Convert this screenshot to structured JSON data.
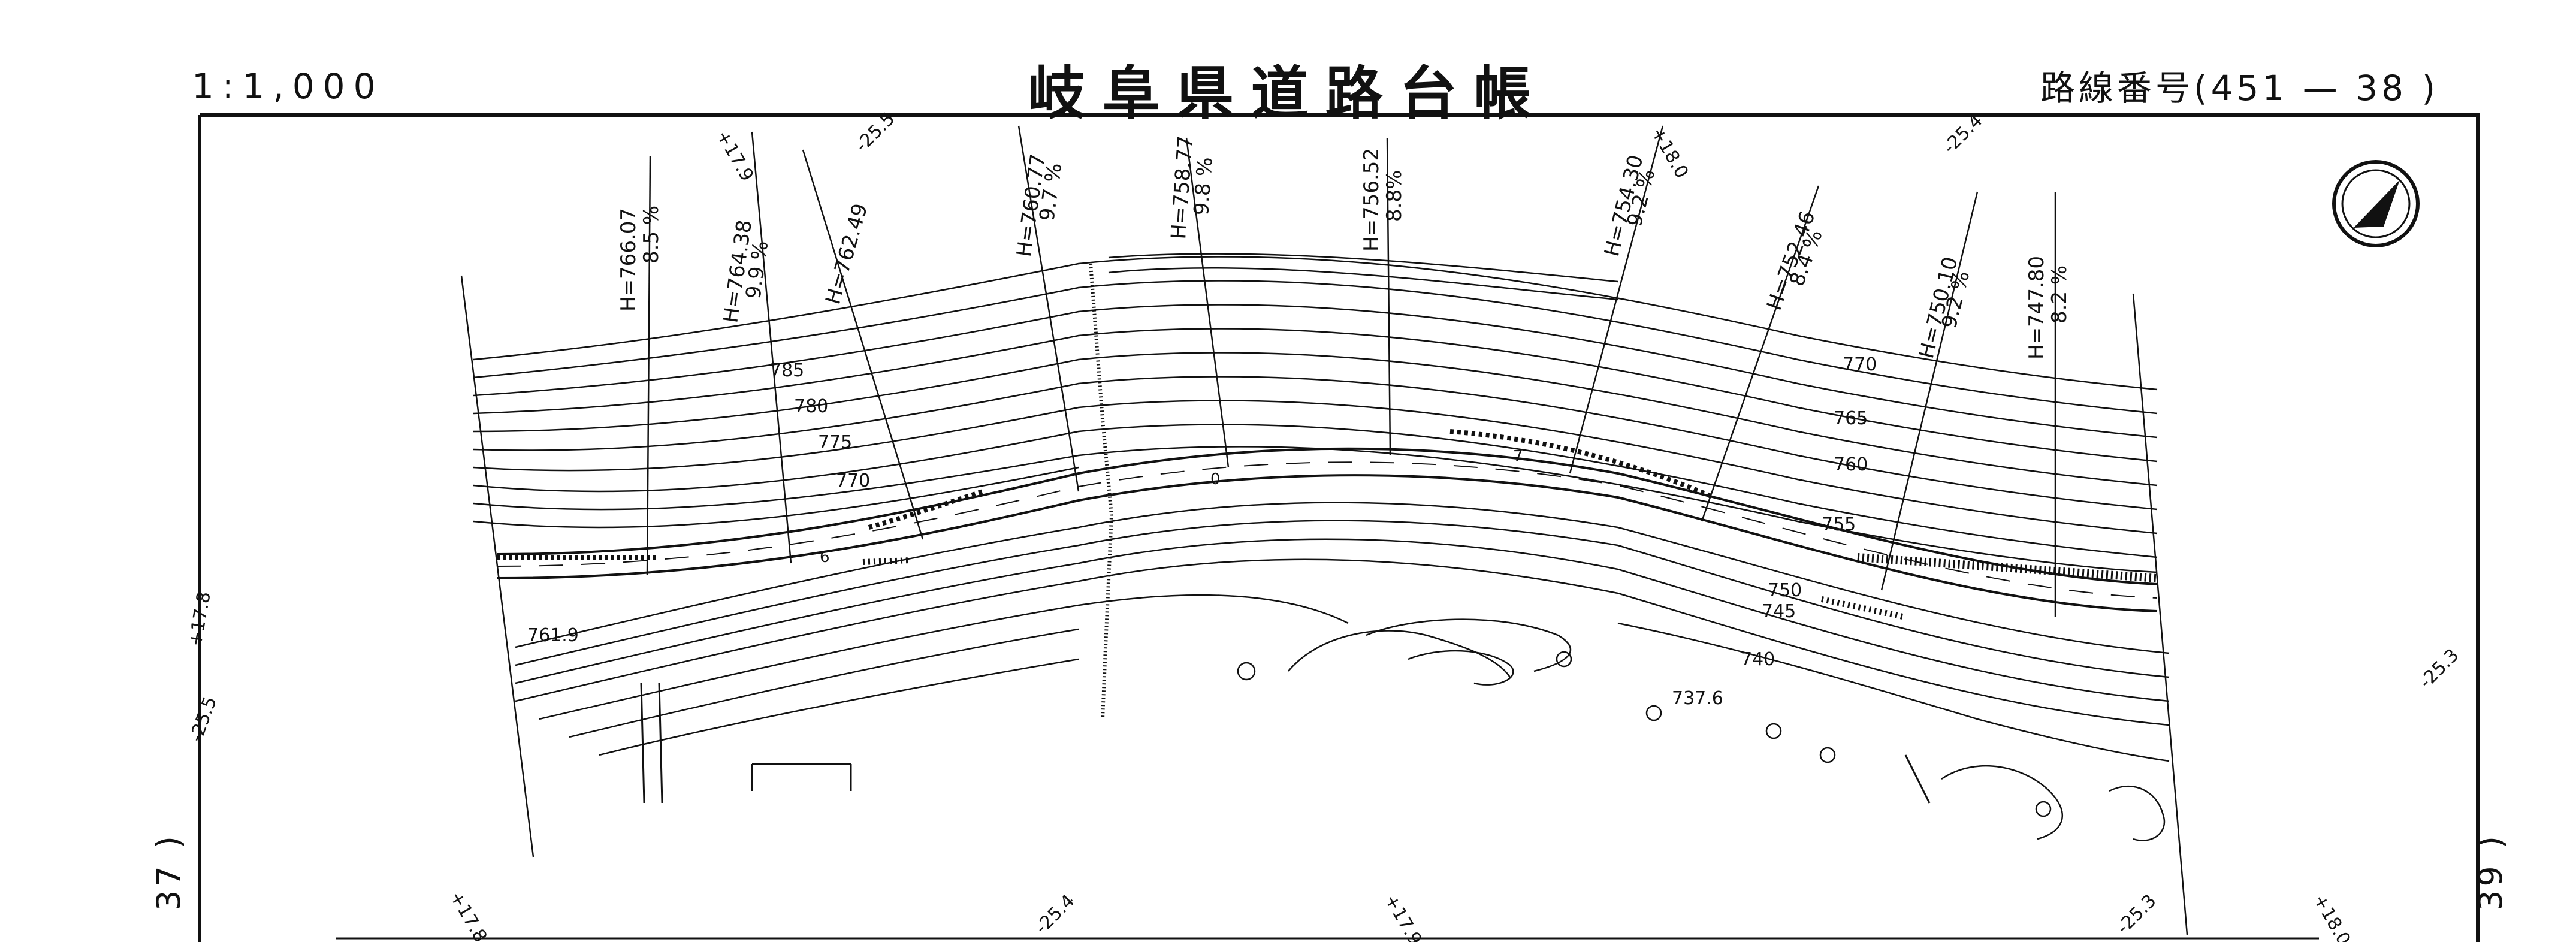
{
  "header": {
    "scale": "1:1,000",
    "title": "岐阜県道路台帳",
    "route_label": "路線番号(451 — 38 )"
  },
  "adjacent_sheets": {
    "left": "37 )",
    "right": "39 )"
  },
  "edge_ticks": [
    "+17.9",
    "-25.5",
    "+18.0",
    "-25.4",
    "+17.8",
    "-25.5",
    "-25.3",
    "+17.8",
    "-25.4",
    "+17.9",
    "-25.3",
    "+18.0"
  ],
  "sections": [
    {
      "h": "H=766.07",
      "grade": "8.5 %"
    },
    {
      "h": "H=764.38",
      "grade": "9.9 %"
    },
    {
      "h": "H=762.49",
      "grade": ""
    },
    {
      "h": "H=760.77",
      "grade": "9.7 %"
    },
    {
      "h": "H=758.77",
      "grade": "9.8 %"
    },
    {
      "h": "H=756.52",
      "grade": "8.8%"
    },
    {
      "h": "H=754.30",
      "grade": "9.2 %"
    },
    {
      "h": "H=752.46",
      "grade": "8.4 %"
    },
    {
      "h": "H=750.10",
      "grade": "9.2 %"
    },
    {
      "h": "H=747.80",
      "grade": "8.2 %"
    }
  ],
  "contour_labels": [
    "785",
    "780",
    "775",
    "770",
    "770",
    "765",
    "760",
    "755",
    "750",
    "745",
    "740"
  ],
  "spot_heights": [
    "761.9",
    "737.6"
  ],
  "station_marks": [
    "6",
    "0",
    "7"
  ],
  "north_arrow": "compass-north-arrow"
}
